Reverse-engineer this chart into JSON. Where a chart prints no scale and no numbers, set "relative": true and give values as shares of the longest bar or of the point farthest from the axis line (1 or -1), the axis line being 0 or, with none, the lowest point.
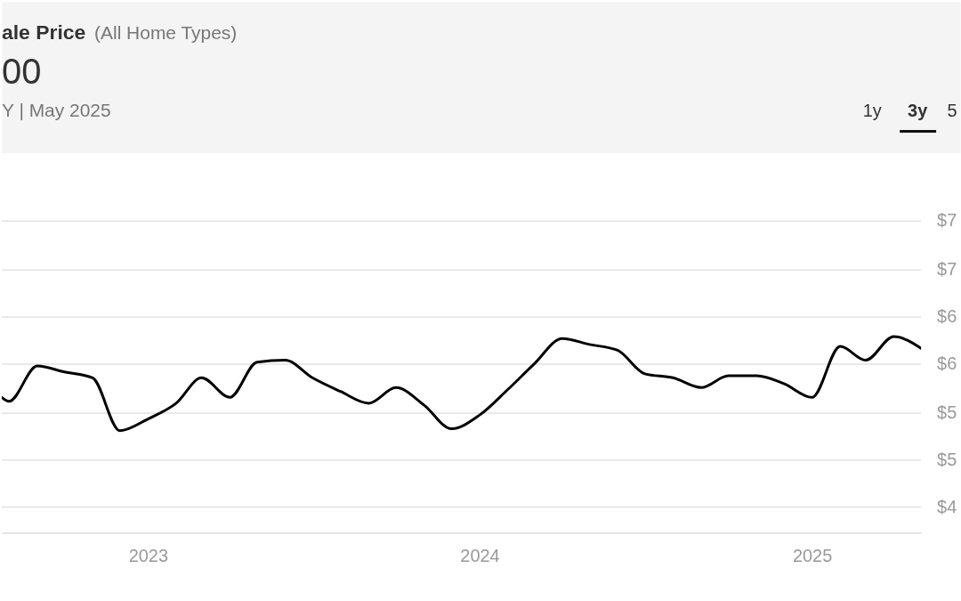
{
  "chart_data": {
    "type": "line",
    "title": "ale Price",
    "subtitle": "(All Home Types)",
    "annotations": [
      "00",
      "Y | May 2025",
      "1y",
      "3y",
      "5",
      "$7",
      "$7",
      "$6",
      "$6",
      "$5",
      "$5",
      "$4"
    ],
    "relative": true,
    "x": [
      "2022-07-24",
      "2022-08-01",
      "2022-09-01",
      "2022-10-01",
      "2022-11-01",
      "2022-12-01",
      "2023-01-01",
      "2023-02-01",
      "2023-03-01",
      "2023-04-01",
      "2023-05-01",
      "2023-06-01",
      "2023-07-01",
      "2023-08-01",
      "2023-09-01",
      "2023-10-01",
      "2023-11-01",
      "2023-12-01",
      "2024-01-01",
      "2024-02-01",
      "2024-03-01",
      "2024-04-01",
      "2024-05-01",
      "2024-06-01",
      "2024-07-01",
      "2024-08-01",
      "2024-09-01",
      "2024-10-01",
      "2024-11-01",
      "2024-12-01",
      "2025-01-01",
      "2025-02-01",
      "2025-03-01",
      "2025-04-01",
      "2025-05-01"
    ],
    "series": [
      {
        "color": "#000000",
        "values": [
          0.69,
          0.67,
          0.85,
          0.82,
          0.79,
          0.52,
          0.58,
          0.66,
          0.79,
          0.69,
          0.87,
          0.88,
          0.79,
          0.72,
          0.66,
          0.74,
          0.65,
          0.53,
          0.6,
          0.73,
          0.86,
          0.99,
          0.96,
          0.93,
          0.81,
          0.79,
          0.74,
          0.8,
          0.8,
          0.76,
          0.69,
          0.95,
          0.88,
          1,
          0.94
        ]
      }
    ],
    "xlim": [
      "2022-07-24",
      "2025-05-01"
    ],
    "xticks": [
      "2023",
      "2024",
      "2025"
    ],
    "ref_lines": [
      {
        "axis": "y",
        "value": 1.59,
        "color": "#e2e2e2",
        "line_style": "solid"
      },
      {
        "axis": "y",
        "value": 1.34,
        "color": "#e2e2e2",
        "line_style": "solid"
      },
      {
        "axis": "y",
        "value": 1.1,
        "color": "#e2e2e2",
        "line_style": "solid"
      },
      {
        "axis": "y",
        "value": 0.86,
        "color": "#e2e2e2",
        "line_style": "solid"
      },
      {
        "axis": "y",
        "value": 0.61,
        "color": "#e2e2e2",
        "line_style": "solid"
      },
      {
        "axis": "y",
        "value": 0.37,
        "color": "#e2e2e2",
        "line_style": "solid"
      },
      {
        "axis": "y",
        "value": 0.13,
        "color": "#e2e2e2",
        "line_style": "solid"
      }
    ]
  }
}
